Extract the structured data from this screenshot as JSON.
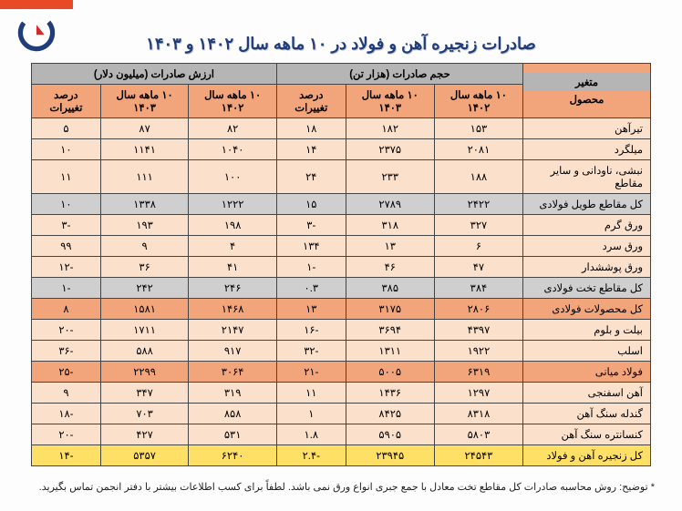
{
  "title": "صادرات زنجیره آهن و فولاد در ۱۰ ماهه سال ۱۴۰۲ و ۱۴۰۳",
  "footnote": "* توضیح: روش محاسبه صادرات کل مقاطع تخت معادل با جمع جبری انواع ورق نمی باشد. لطفاً برای کسب اطلاعات بیشتر با دفتر انجمن تماس بگیرید.",
  "header": {
    "variable": "متغیر",
    "product": "محصول",
    "volume_group": "حجم صادرات (هزار تن)",
    "value_group": "ارزش صادرات (میلیون دلار)",
    "y1402": "۱۰ ماهه سال ۱۴۰۲",
    "y1403": "۱۰ ماهه سال ۱۴۰۳",
    "pct": "درصد تغییرات"
  },
  "rows": [
    {
      "cls": "r-lo",
      "prod": "تیرآهن",
      "v02": "۱۵۳",
      "v03": "۱۸۲",
      "vp": "۱۸",
      "a02": "۸۲",
      "a03": "۸۷",
      "ap": "۵"
    },
    {
      "cls": "r-lo",
      "prod": "میلگرد",
      "v02": "۲۰۸۱",
      "v03": "۲۳۷۵",
      "vp": "۱۴",
      "a02": "۱۰۴۰",
      "a03": "۱۱۴۱",
      "ap": "۱۰"
    },
    {
      "cls": "r-lo",
      "prod": "نبشی، ناودانی و سایر مقاطع",
      "v02": "۱۸۸",
      "v03": "۲۳۳",
      "vp": "۲۴",
      "a02": "۱۰۰",
      "a03": "۱۱۱",
      "ap": "۱۱"
    },
    {
      "cls": "r-gr",
      "prod": "کل مقاطع طویل فولادی",
      "v02": "۲۴۲۲",
      "v03": "۲۷۸۹",
      "vp": "۱۵",
      "a02": "۱۲۲۲",
      "a03": "۱۳۳۸",
      "ap": "۱۰"
    },
    {
      "cls": "r-lo",
      "prod": "ورق گرم",
      "v02": "۳۲۷",
      "v03": "۳۱۸",
      "vp": "-۳",
      "a02": "۱۹۸",
      "a03": "۱۹۳",
      "ap": "-۳"
    },
    {
      "cls": "r-lo",
      "prod": "ورق سرد",
      "v02": "۶",
      "v03": "۱۳",
      "vp": "۱۳۴",
      "a02": "۴",
      "a03": "۹",
      "ap": "۹۹"
    },
    {
      "cls": "r-lo",
      "prod": "ورق پوششدار",
      "v02": "۴۷",
      "v03": "۴۶",
      "vp": "-۱",
      "a02": "۴۱",
      "a03": "۳۶",
      "ap": "-۱۲"
    },
    {
      "cls": "r-gr",
      "prod": "کل مقاطع تخت فولادی",
      "v02": "۳۸۴",
      "v03": "۳۸۵",
      "vp": "۰.۳",
      "a02": "۲۴۶",
      "a03": "۲۴۲",
      "ap": "-۱"
    },
    {
      "cls": "r-do",
      "prod": "کل محصولات فولادی",
      "v02": "۲۸۰۶",
      "v03": "۳۱۷۵",
      "vp": "۱۳",
      "a02": "۱۴۶۸",
      "a03": "۱۵۸۱",
      "ap": "۸"
    },
    {
      "cls": "r-lo",
      "prod": "بیلت و بلوم",
      "v02": "۴۳۹۷",
      "v03": "۳۶۹۴",
      "vp": "-۱۶",
      "a02": "۲۱۴۷",
      "a03": "۱۷۱۱",
      "ap": "-۲۰"
    },
    {
      "cls": "r-lo",
      "prod": "اسلب",
      "v02": "۱۹۲۲",
      "v03": "۱۳۱۱",
      "vp": "-۳۲",
      "a02": "۹۱۷",
      "a03": "۵۸۸",
      "ap": "-۳۶"
    },
    {
      "cls": "r-do",
      "prod": "فولاد میانی",
      "v02": "۶۳۱۹",
      "v03": "۵۰۰۵",
      "vp": "-۲۱",
      "a02": "۳۰۶۴",
      "a03": "۲۲۹۹",
      "ap": "-۲۵"
    },
    {
      "cls": "r-lo",
      "prod": "آهن اسفنجی",
      "v02": "۱۲۹۷",
      "v03": "۱۴۳۶",
      "vp": "۱۱",
      "a02": "۳۱۹",
      "a03": "۳۴۷",
      "ap": "۹"
    },
    {
      "cls": "r-lo",
      "prod": "گندله سنگ آهن",
      "v02": "۸۳۱۸",
      "v03": "۸۴۲۵",
      "vp": "۱",
      "a02": "۸۵۸",
      "a03": "۷۰۳",
      "ap": "-۱۸"
    },
    {
      "cls": "r-lo",
      "prod": "کنسانتره سنگ آهن",
      "v02": "۵۸۰۳",
      "v03": "۵۹۰۵",
      "vp": "۱.۸",
      "a02": "۵۳۱",
      "a03": "۴۲۷",
      "ap": "-۲۰"
    },
    {
      "cls": "r-ye",
      "prod": "کل زنجیره آهن و فولاد",
      "v02": "۲۴۵۴۳",
      "v03": "۲۳۹۴۵",
      "vp": "-۲.۴",
      "a02": "۶۲۴۰",
      "a03": "۵۳۵۷",
      "ap": "-۱۴"
    }
  ],
  "colors": {
    "accent": "#e84a27",
    "header_orange": "#f2a57a",
    "header_gray": "#b5b5b5",
    "row_light": "#fbe1cc",
    "row_gray": "#cfcfcf",
    "row_yellow": "#ffe066",
    "title": "#1f3d7a"
  }
}
